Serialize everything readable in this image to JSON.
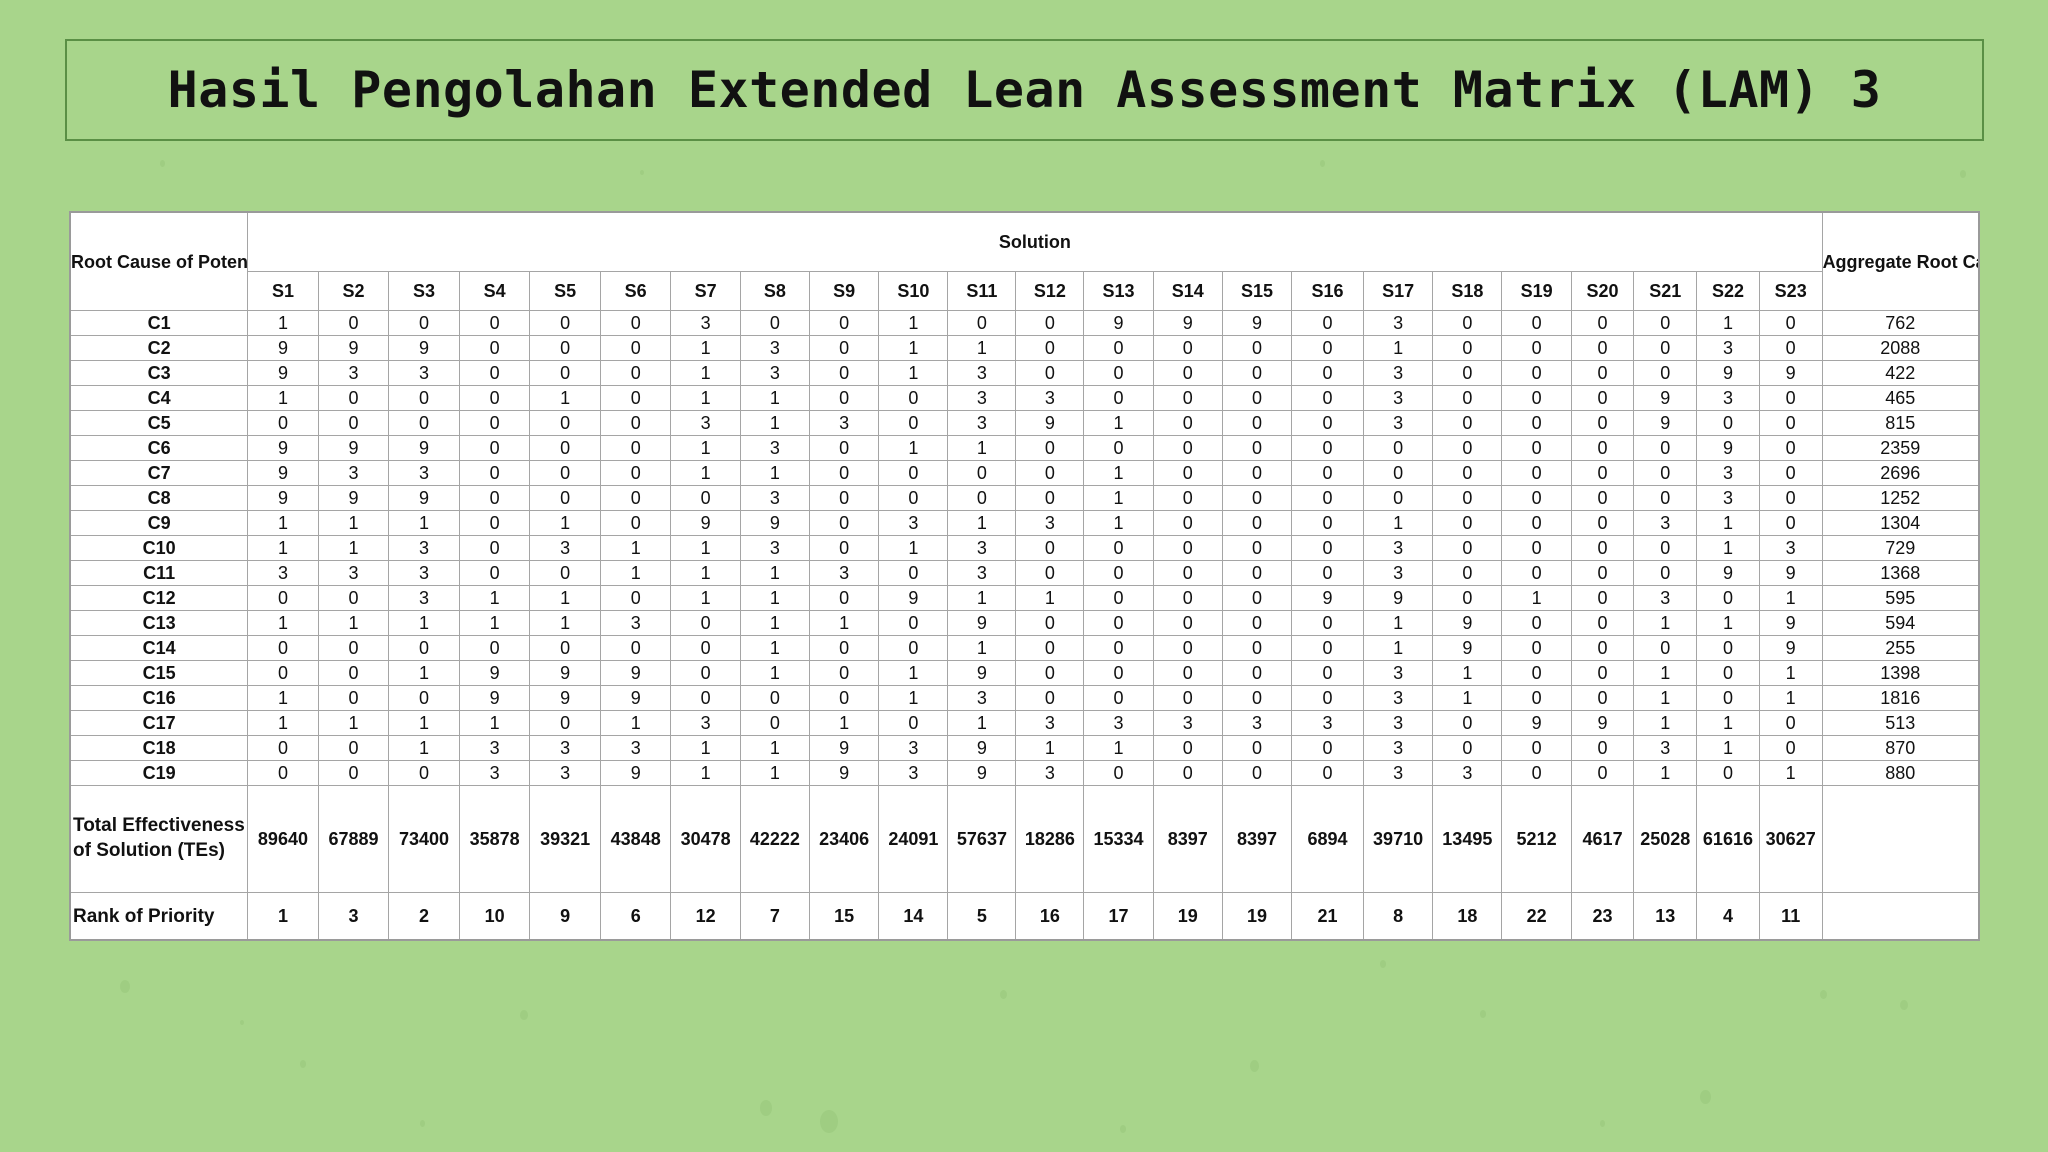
{
  "title": "Hasil Pengolahan Extended Lean Assessment Matrix (LAM) 3",
  "table": {
    "root_cause_header": "Root Cause of Potential Failure",
    "solution_header": "Solution",
    "aggregate_header": "Aggregate Root Cause of Potential Failure",
    "solutions": [
      "S1",
      "S2",
      "S3",
      "S4",
      "S5",
      "S6",
      "S7",
      "S8",
      "S9",
      "S10",
      "S11",
      "S12",
      "S13",
      "S14",
      "S15",
      "S16",
      "S17",
      "S18",
      "S19",
      "S20",
      "S21",
      "S22",
      "S23"
    ],
    "rows": [
      {
        "cause": "C1",
        "values": [
          "1",
          "0",
          "0",
          "0",
          "0",
          "0",
          "3",
          "0",
          "0",
          "1",
          "0",
          "0",
          "9",
          "9",
          "9",
          "0",
          "3",
          "0",
          "0",
          "0",
          "0",
          "1",
          "0"
        ],
        "aggregate": "762"
      },
      {
        "cause": "C2",
        "values": [
          "9",
          "9",
          "9",
          "0",
          "0",
          "0",
          "1",
          "3",
          "0",
          "1",
          "1",
          "0",
          "0",
          "0",
          "0",
          "0",
          "1",
          "0",
          "0",
          "0",
          "0",
          "3",
          "0"
        ],
        "aggregate": "2088"
      },
      {
        "cause": "C3",
        "values": [
          "9",
          "3",
          "3",
          "0",
          "0",
          "0",
          "1",
          "3",
          "0",
          "1",
          "3",
          "0",
          "0",
          "0",
          "0",
          "0",
          "3",
          "0",
          "0",
          "0",
          "0",
          "9",
          "9"
        ],
        "aggregate": "422"
      },
      {
        "cause": "C4",
        "values": [
          "1",
          "0",
          "0",
          "0",
          "1",
          "0",
          "1",
          "1",
          "0",
          "0",
          "3",
          "3",
          "0",
          "0",
          "0",
          "0",
          "3",
          "0",
          "0",
          "0",
          "9",
          "3",
          "0"
        ],
        "aggregate": "465"
      },
      {
        "cause": "C5",
        "values": [
          "0",
          "0",
          "0",
          "0",
          "0",
          "0",
          "3",
          "1",
          "3",
          "0",
          "3",
          "9",
          "1",
          "0",
          "0",
          "0",
          "3",
          "0",
          "0",
          "0",
          "9",
          "0",
          "0"
        ],
        "aggregate": "815"
      },
      {
        "cause": "C6",
        "values": [
          "9",
          "9",
          "9",
          "0",
          "0",
          "0",
          "1",
          "3",
          "0",
          "1",
          "1",
          "0",
          "0",
          "0",
          "0",
          "0",
          "0",
          "0",
          "0",
          "0",
          "0",
          "9",
          "0"
        ],
        "aggregate": "2359"
      },
      {
        "cause": "C7",
        "values": [
          "9",
          "3",
          "3",
          "0",
          "0",
          "0",
          "1",
          "1",
          "0",
          "0",
          "0",
          "0",
          "1",
          "0",
          "0",
          "0",
          "0",
          "0",
          "0",
          "0",
          "0",
          "3",
          "0"
        ],
        "aggregate": "2696"
      },
      {
        "cause": "C8",
        "values": [
          "9",
          "9",
          "9",
          "0",
          "0",
          "0",
          "0",
          "3",
          "0",
          "0",
          "0",
          "0",
          "1",
          "0",
          "0",
          "0",
          "0",
          "0",
          "0",
          "0",
          "0",
          "3",
          "0"
        ],
        "aggregate": "1252"
      },
      {
        "cause": "C9",
        "values": [
          "1",
          "1",
          "1",
          "0",
          "1",
          "0",
          "9",
          "9",
          "0",
          "3",
          "1",
          "3",
          "1",
          "0",
          "0",
          "0",
          "1",
          "0",
          "0",
          "0",
          "3",
          "1",
          "0"
        ],
        "aggregate": "1304"
      },
      {
        "cause": "C10",
        "values": [
          "1",
          "1",
          "3",
          "0",
          "3",
          "1",
          "1",
          "3",
          "0",
          "1",
          "3",
          "0",
          "0",
          "0",
          "0",
          "0",
          "3",
          "0",
          "0",
          "0",
          "0",
          "1",
          "3"
        ],
        "aggregate": "729"
      },
      {
        "cause": "C11",
        "values": [
          "3",
          "3",
          "3",
          "0",
          "0",
          "1",
          "1",
          "1",
          "3",
          "0",
          "3",
          "0",
          "0",
          "0",
          "0",
          "0",
          "3",
          "0",
          "0",
          "0",
          "0",
          "9",
          "9"
        ],
        "aggregate": "1368"
      },
      {
        "cause": "C12",
        "values": [
          "0",
          "0",
          "3",
          "1",
          "1",
          "0",
          "1",
          "1",
          "0",
          "9",
          "1",
          "1",
          "0",
          "0",
          "0",
          "9",
          "9",
          "0",
          "1",
          "0",
          "3",
          "0",
          "1"
        ],
        "aggregate": "595"
      },
      {
        "cause": "C13",
        "values": [
          "1",
          "1",
          "1",
          "1",
          "1",
          "3",
          "0",
          "1",
          "1",
          "0",
          "9",
          "0",
          "0",
          "0",
          "0",
          "0",
          "1",
          "9",
          "0",
          "0",
          "1",
          "1",
          "9"
        ],
        "aggregate": "594"
      },
      {
        "cause": "C14",
        "values": [
          "0",
          "0",
          "0",
          "0",
          "0",
          "0",
          "0",
          "1",
          "0",
          "0",
          "1",
          "0",
          "0",
          "0",
          "0",
          "0",
          "1",
          "9",
          "0",
          "0",
          "0",
          "0",
          "9"
        ],
        "aggregate": "255"
      },
      {
        "cause": "C15",
        "values": [
          "0",
          "0",
          "1",
          "9",
          "9",
          "9",
          "0",
          "1",
          "0",
          "1",
          "9",
          "0",
          "0",
          "0",
          "0",
          "0",
          "3",
          "1",
          "0",
          "0",
          "1",
          "0",
          "1"
        ],
        "aggregate": "1398"
      },
      {
        "cause": "C16",
        "values": [
          "1",
          "0",
          "0",
          "9",
          "9",
          "9",
          "0",
          "0",
          "0",
          "1",
          "3",
          "0",
          "0",
          "0",
          "0",
          "0",
          "3",
          "1",
          "0",
          "0",
          "1",
          "0",
          "1"
        ],
        "aggregate": "1816"
      },
      {
        "cause": "C17",
        "values": [
          "1",
          "1",
          "1",
          "1",
          "0",
          "1",
          "3",
          "0",
          "1",
          "0",
          "1",
          "3",
          "3",
          "3",
          "3",
          "3",
          "3",
          "0",
          "9",
          "9",
          "1",
          "1",
          "0"
        ],
        "aggregate": "513"
      },
      {
        "cause": "C18",
        "values": [
          "0",
          "0",
          "1",
          "3",
          "3",
          "3",
          "1",
          "1",
          "9",
          "3",
          "9",
          "1",
          "1",
          "0",
          "0",
          "0",
          "3",
          "0",
          "0",
          "0",
          "3",
          "1",
          "0"
        ],
        "aggregate": "870"
      },
      {
        "cause": "C19",
        "values": [
          "0",
          "0",
          "0",
          "3",
          "3",
          "9",
          "1",
          "1",
          "9",
          "3",
          "9",
          "3",
          "0",
          "0",
          "0",
          "0",
          "3",
          "3",
          "0",
          "0",
          "1",
          "0",
          "1"
        ],
        "aggregate": "880"
      }
    ],
    "total_label": "Total Effectiveness of Solution (TEs)",
    "totals": [
      "89640",
      "67889",
      "73400",
      "35878",
      "39321",
      "43848",
      "30478",
      "42222",
      "23406",
      "24091",
      "57637",
      "18286",
      "15334",
      "8397",
      "8397",
      "6894",
      "39710",
      "13495",
      "5212",
      "4617",
      "25028",
      "61616",
      "30627"
    ],
    "rank_label": "Rank of Priority",
    "ranks": [
      "1",
      "3",
      "2",
      "10",
      "9",
      "6",
      "12",
      "7",
      "15",
      "14",
      "5",
      "16",
      "17",
      "19",
      "19",
      "21",
      "8",
      "18",
      "22",
      "23",
      "13",
      "4",
      "11"
    ]
  }
}
